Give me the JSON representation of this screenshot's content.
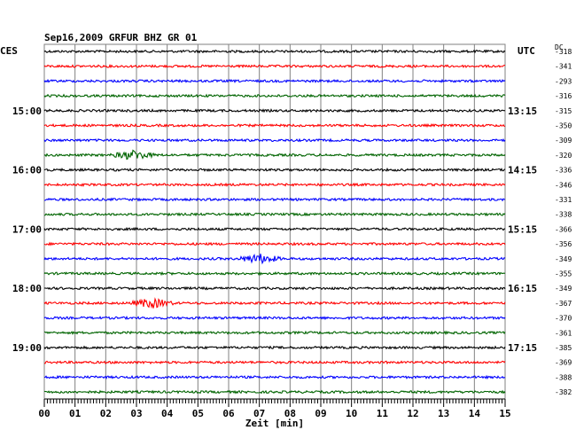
{
  "chart_data": {
    "type": "line",
    "title": "Sep16,2009   GRFUR BHZ GR 01",
    "left_tz_label": "CES",
    "right_tz_label": "UTC",
    "dc_header": "DC",
    "xlabel": "Zeit [min]",
    "x_ticks": [
      "00",
      "01",
      "02",
      "03",
      "04",
      "05",
      "06",
      "07",
      "08",
      "09",
      "10",
      "11",
      "12",
      "13",
      "14",
      "15"
    ],
    "xlim": [
      0,
      15
    ],
    "left_hour_labels": [
      {
        "row": 4,
        "text": "15:00"
      },
      {
        "row": 8,
        "text": "16:00"
      },
      {
        "row": 12,
        "text": "17:00"
      },
      {
        "row": 16,
        "text": "18:00"
      },
      {
        "row": 20,
        "text": "19:00"
      }
    ],
    "right_hour_labels": [
      {
        "row": 4,
        "text": "13:15"
      },
      {
        "row": 8,
        "text": "14:15"
      },
      {
        "row": 12,
        "text": "15:15"
      },
      {
        "row": 16,
        "text": "16:15"
      },
      {
        "row": 20,
        "text": "17:15"
      }
    ],
    "trace_colors": [
      "#000000",
      "#ff0000",
      "#0000ff",
      "#006400"
    ],
    "dc_offsets": [
      -318,
      -341,
      -293,
      -316,
      -315,
      -350,
      -309,
      -320,
      -336,
      -346,
      -331,
      -338,
      -366,
      -356,
      -349,
      -355,
      -349,
      -367,
      -370,
      -361,
      -385,
      -369,
      -388,
      -382
    ],
    "events": [
      {
        "row": 7,
        "minute": 2.9,
        "note": ""
      },
      {
        "row": 14,
        "minute": 7.0,
        "note": ""
      },
      {
        "row": 17,
        "minute": 3.5,
        "note": ""
      }
    ],
    "grid": true
  }
}
